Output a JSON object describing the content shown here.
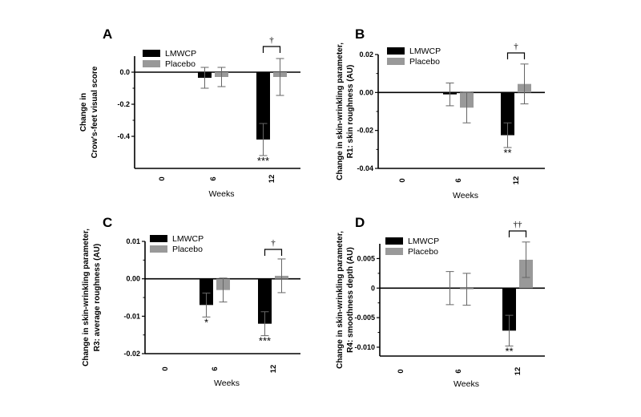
{
  "chart_data": [
    {
      "panel": "A",
      "type": "bar",
      "categories": [
        "0",
        "6",
        "12"
      ],
      "xlabel": "Weeks",
      "ylabel_lines": [
        "Change in",
        "Crow's-feet visual score"
      ],
      "ylim": [
        -0.6,
        0.1
      ],
      "yticks": [
        "0.0",
        "-0.2",
        "-0.4"
      ],
      "ytick_values": [
        0.0,
        -0.2,
        -0.4
      ],
      "legend": [
        "LMWCP",
        "Placebo"
      ],
      "series": [
        {
          "name": "LMWCP",
          "color": "#000000",
          "values": [
            null,
            -0.035,
            -0.42
          ],
          "errors": [
            null,
            0.065,
            0.1
          ]
        },
        {
          "name": "Placebo",
          "color": "#999999",
          "values": [
            null,
            -0.03,
            -0.03
          ],
          "errors": [
            null,
            0.06,
            0.115
          ]
        }
      ],
      "significance": [
        {
          "category": "12",
          "series": "LMWCP",
          "label": "***"
        }
      ],
      "bracket": {
        "category": "12",
        "label": "†"
      }
    },
    {
      "panel": "B",
      "type": "bar",
      "categories": [
        "0",
        "6",
        "12"
      ],
      "xlabel": "Weeks",
      "ylabel_lines": [
        "Change in skin-wrinkling parameter,",
        "R1: skin  roughness (AU)"
      ],
      "ylim": [
        -0.04,
        0.02
      ],
      "yticks": [
        "0.02",
        "0.00",
        "-0.02",
        "-0.04"
      ],
      "ytick_values": [
        0.02,
        0.0,
        -0.02,
        -0.04
      ],
      "legend": [
        "LMWCP",
        "Placebo"
      ],
      "series": [
        {
          "name": "LMWCP",
          "color": "#000000",
          "values": [
            null,
            -0.001,
            -0.0225
          ],
          "errors": [
            null,
            0.006,
            0.0065
          ]
        },
        {
          "name": "Placebo",
          "color": "#999999",
          "values": [
            null,
            -0.008,
            0.0045
          ],
          "errors": [
            null,
            0.008,
            0.0105
          ]
        }
      ],
      "significance": [
        {
          "category": "12",
          "series": "LMWCP",
          "label": "**"
        }
      ],
      "bracket": {
        "category": "12",
        "label": "†"
      }
    },
    {
      "panel": "C",
      "type": "bar",
      "categories": [
        "0",
        "6",
        "12"
      ],
      "xlabel": "Weeks",
      "ylabel_lines": [
        "Change in skin-wrinkling parameter,",
        "R3: average  roughness (AU)"
      ],
      "ylim": [
        -0.02,
        0.01
      ],
      "yticks": [
        "0.01",
        "0.00",
        "-0.01",
        "-0.02"
      ],
      "ytick_values": [
        0.01,
        0.0,
        -0.01,
        -0.02
      ],
      "legend": [
        "LMWCP",
        "Placebo"
      ],
      "series": [
        {
          "name": "LMWCP",
          "color": "#000000",
          "values": [
            null,
            -0.007,
            -0.012
          ],
          "errors": [
            null,
            0.0032,
            0.0032
          ]
        },
        {
          "name": "Placebo",
          "color": "#999999",
          "values": [
            null,
            -0.003,
            0.0008
          ],
          "errors": [
            null,
            0.0032,
            0.0045
          ]
        }
      ],
      "significance": [
        {
          "category": "6",
          "series": "LMWCP",
          "label": "*"
        },
        {
          "category": "12",
          "series": "LMWCP",
          "label": "***"
        }
      ],
      "bracket": {
        "category": "12",
        "label": "†"
      }
    },
    {
      "panel": "D",
      "type": "bar",
      "categories": [
        "0",
        "6",
        "12"
      ],
      "xlabel": "Weeks",
      "ylabel_lines": [
        "Change in skin-wrinkling parameter,",
        "R4: smoothness  depth (AU)"
      ],
      "ylim": [
        -0.0115,
        0.0075
      ],
      "yticks": [
        "0.005",
        "0",
        "-0.005",
        "-0.010"
      ],
      "ytick_values": [
        0.005,
        0.0,
        -0.005,
        -0.01
      ],
      "legend": [
        "LMWCP",
        "Placebo"
      ],
      "series": [
        {
          "name": "LMWCP",
          "color": "#000000",
          "values": [
            null,
            0.0,
            -0.0072
          ],
          "errors": [
            null,
            0.0028,
            0.0026
          ]
        },
        {
          "name": "Placebo",
          "color": "#999999",
          "values": [
            null,
            -0.0002,
            0.0048
          ],
          "errors": [
            null,
            0.0027,
            0.003
          ]
        }
      ],
      "significance": [
        {
          "category": "12",
          "series": "LMWCP",
          "label": "**"
        }
      ],
      "bracket": {
        "category": "12",
        "label": "††"
      }
    }
  ]
}
